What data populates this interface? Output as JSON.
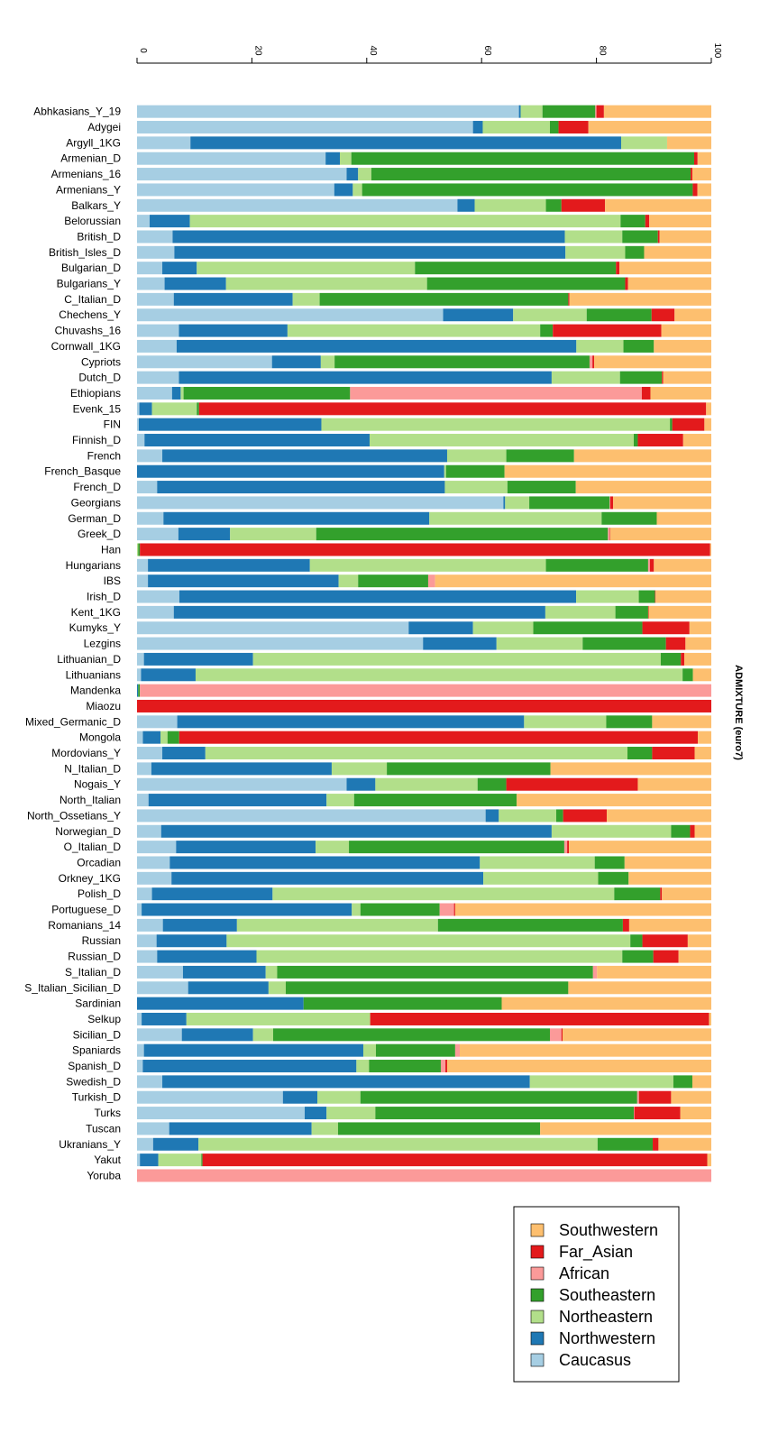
{
  "chart_data": {
    "type": "bar",
    "orientation": "horizontal-stacked",
    "title": "",
    "axis_label": "ADMIXTURE (euro7)",
    "xlim": [
      0,
      100
    ],
    "ticks": [
      0,
      20,
      40,
      60,
      80,
      100
    ],
    "legend_placement": "bottom-right",
    "components": [
      {
        "name": "Caucasus",
        "color": "#a6cee3"
      },
      {
        "name": "Northwestern",
        "color": "#1f78b4"
      },
      {
        "name": "Northeastern",
        "color": "#b2df8a"
      },
      {
        "name": "Southeastern",
        "color": "#33a02c"
      },
      {
        "name": "African",
        "color": "#fb9a99"
      },
      {
        "name": "Far_Asian",
        "color": "#e31a1c"
      },
      {
        "name": "Southwestern",
        "color": "#fdbf6f"
      }
    ],
    "legend_order": [
      "Southwestern",
      "Far_Asian",
      "African",
      "Southeastern",
      "Northeastern",
      "Northwestern",
      "Caucasus"
    ],
    "categories": [
      "Abhkasians_Y_19",
      "Adygei",
      "Argyll_1KG",
      "Armenian_D",
      "Armenians_16",
      "Armenians_Y",
      "Balkars_Y",
      "Belorussian",
      "British_D",
      "British_Isles_D",
      "Bulgarian_D",
      "Bulgarians_Y",
      "C_Italian_D",
      "Chechens_Y",
      "Chuvashs_16",
      "Cornwall_1KG",
      "Cypriots",
      "Dutch_D",
      "Ethiopians",
      "Evenk_15",
      "FIN",
      "Finnish_D",
      "French",
      "French_Basque",
      "French_D",
      "Georgians",
      "German_D",
      "Greek_D",
      "Han",
      "Hungarians",
      "IBS",
      "Irish_D",
      "Kent_1KG",
      "Kumyks_Y",
      "Lezgins",
      "Lithuanian_D",
      "Lithuanians",
      "Mandenka",
      "Miaozu",
      "Mixed_Germanic_D",
      "Mongola",
      "Mordovians_Y",
      "N_Italian_D",
      "Nogais_Y",
      "North_Italian",
      "North_Ossetians_Y",
      "Norwegian_D",
      "O_Italian_D",
      "Orcadian",
      "Orkney_1KG",
      "Polish_D",
      "Portuguese_D",
      "Romanians_14",
      "Russian",
      "Russian_D",
      "S_Italian_D",
      "S_Italian_Sicilian_D",
      "Sardinian",
      "Selkup",
      "Sicilian_D",
      "Spaniards",
      "Spanish_D",
      "Swedish_D",
      "Turkish_D",
      "Turks",
      "Tuscan",
      "Ukranians_Y",
      "Yakut",
      "Yoruba"
    ],
    "series": [
      {
        "name": "Caucasus",
        "values": [
          66.5,
          58.5,
          9.3,
          33,
          36.5,
          34,
          55.8,
          2.2,
          6.2,
          6.5,
          4.4,
          4.8,
          6.4,
          53.3,
          7.3,
          6.9,
          23.5,
          7.3,
          6.1,
          0.4,
          0.3,
          1.3,
          4.4,
          0,
          3.5,
          63.8,
          4.6,
          7.2,
          0,
          1.9,
          1.9,
          7.3,
          6.4,
          47.3,
          49.8,
          1.2,
          0.7,
          0,
          0,
          7,
          1,
          4.4,
          2.5,
          36.5,
          2,
          60.7,
          4.2,
          6.8,
          5.7,
          6,
          2.6,
          0.8,
          4.5,
          3.4,
          3.5,
          8,
          8.9,
          0,
          0.8,
          7.8,
          1.2,
          1,
          4.4,
          25.4,
          29.2,
          5.6,
          2.8,
          0.5,
          0
        ]
      },
      {
        "name": "Northwestern",
        "values": [
          0.3,
          1.7,
          75,
          2.5,
          2,
          3.2,
          3,
          7,
          68.3,
          68.1,
          6,
          10.7,
          20.7,
          12.2,
          18.9,
          69.6,
          8.5,
          64.9,
          1.5,
          2.2,
          31.8,
          39.2,
          49.6,
          53.5,
          50.1,
          0.3,
          46.3,
          9,
          0,
          28.2,
          33.2,
          68.4,
          64.7,
          11.2,
          12.8,
          19,
          9.5,
          0.2,
          0,
          60.4,
          3,
          7.5,
          31.4,
          5,
          31,
          2.3,
          68,
          24.3,
          54,
          54.3,
          21,
          36.6,
          12.9,
          12.2,
          17.3,
          14.4,
          14,
          29,
          7.8,
          12.4,
          38.2,
          37.2,
          64,
          6,
          3.8,
          24.8,
          7.9,
          3.2,
          0
        ]
      },
      {
        "name": "Northeastern",
        "values": [
          3.8,
          11.7,
          8,
          2,
          2.3,
          1.6,
          12.4,
          75,
          10,
          10.4,
          38,
          35,
          4.7,
          12.8,
          44,
          8.2,
          2.4,
          11.9,
          0.5,
          7.8,
          60.7,
          46,
          10.3,
          0.3,
          10.9,
          4.2,
          30,
          15,
          0.2,
          41.1,
          3.4,
          10.8,
          12.2,
          10.5,
          15,
          71,
          84.8,
          0,
          0,
          14.3,
          1.2,
          73.5,
          9.6,
          17.8,
          4.8,
          10,
          20.8,
          5.8,
          20,
          20,
          59.5,
          1.5,
          35,
          70.3,
          63.7,
          2,
          3,
          0,
          32,
          3.5,
          2.2,
          2.2,
          25,
          7.5,
          8.5,
          4.6,
          69.5,
          7.5,
          0
        ]
      },
      {
        "name": "Southeastern",
        "values": [
          9.2,
          1.5,
          0,
          60,
          55.6,
          57,
          2.7,
          4.3,
          6.2,
          3.3,
          35,
          34.5,
          43.3,
          11.3,
          2.2,
          5.3,
          44.4,
          7.3,
          29,
          0.4,
          0.4,
          0.7,
          11.8,
          10.2,
          11.9,
          14,
          9.6,
          50.8,
          0.3,
          17.8,
          12.2,
          2.8,
          5.7,
          19,
          14.5,
          3.5,
          1.8,
          0.3,
          0,
          8,
          2,
          4.3,
          28.5,
          5,
          28.3,
          1.2,
          3.3,
          37.5,
          5.2,
          5.3,
          8,
          13.8,
          32.2,
          2.1,
          5.4,
          55,
          49.2,
          34.5,
          0,
          48.2,
          13.8,
          12.5,
          3.3,
          48.2,
          45,
          35.2,
          9.6,
          0.2,
          0
        ]
      },
      {
        "name": "African",
        "values": [
          0.2,
          0,
          0,
          0,
          0,
          0,
          0,
          0,
          0,
          0,
          0,
          0,
          0,
          0,
          0,
          0,
          0.5,
          0,
          50.8,
          0,
          0,
          0,
          0,
          0,
          0,
          0.1,
          0,
          0.3,
          0,
          0.3,
          1.2,
          0,
          0,
          0,
          0,
          0,
          0,
          99.5,
          0,
          0,
          0,
          0,
          0,
          0,
          0,
          0,
          0,
          0.5,
          0,
          0,
          0,
          2.5,
          0,
          0,
          0,
          0.7,
          0,
          0,
          0,
          2,
          0.8,
          0.8,
          0,
          0.3,
          0.1,
          0,
          0,
          0,
          100
        ]
      },
      {
        "name": "Far_Asian",
        "values": [
          1.3,
          5.2,
          0,
          0.6,
          0.3,
          0.8,
          7.6,
          0.7,
          0.3,
          0,
          0.6,
          0.5,
          0.2,
          4,
          18.9,
          0,
          0.3,
          0.2,
          1.5,
          88.3,
          5.6,
          7.9,
          0,
          0,
          0,
          0.5,
          0,
          0.1,
          99.3,
          0.7,
          0,
          0.1,
          0.1,
          8.2,
          3.4,
          0.6,
          0,
          0,
          100,
          0,
          88.5,
          7.4,
          0,
          22.9,
          0,
          7.6,
          0.8,
          0.3,
          0,
          0,
          0.3,
          0.2,
          1.1,
          7.9,
          4.4,
          0,
          0,
          0,
          59,
          0.2,
          0,
          0.3,
          0,
          5.6,
          8,
          0,
          1,
          87.9,
          0
        ]
      },
      {
        "name": "Southwestern",
        "values": [
          18.7,
          21.4,
          7.7,
          2.4,
          3.3,
          2.4,
          18.5,
          10.8,
          9,
          11.7,
          16,
          14.5,
          24.7,
          6.4,
          8.7,
          10,
          20.4,
          8.4,
          10.6,
          0.9,
          1.2,
          4.9,
          23.9,
          36,
          23.6,
          17.1,
          9.5,
          17.6,
          0.2,
          10,
          48.1,
          9.6,
          10.9,
          3.8,
          4.5,
          4.7,
          3.2,
          0,
          0,
          10.3,
          2.3,
          2.9,
          28,
          12.8,
          33.9,
          18.2,
          2.9,
          24.8,
          15.1,
          14.4,
          8.6,
          44.6,
          14.3,
          4.1,
          5.7,
          19.9,
          24.9,
          36.5,
          0.4,
          25.9,
          43.8,
          46,
          3.3,
          7,
          5.4,
          29.8,
          9.2,
          0.7,
          0
        ]
      }
    ]
  }
}
